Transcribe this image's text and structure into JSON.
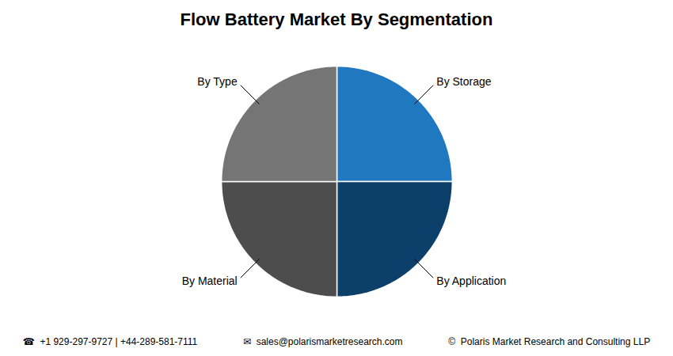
{
  "chart_data": {
    "type": "pie",
    "title": "Flow Battery Market By Segmentation",
    "categories": [
      "By Storage",
      "By Application",
      "By Material",
      "By Type"
    ],
    "values": [
      25,
      25,
      25,
      25
    ],
    "colors": [
      "#2079c0",
      "#0d3f6b",
      "#4d4d4d",
      "#757575"
    ],
    "annotations": [
      "☎  +1 929-297-9727 | +44-289-581-7111",
      "✉  sales@polarismarketresearch.com",
      "©  Polaris Market Research and Consulting LLP"
    ]
  }
}
